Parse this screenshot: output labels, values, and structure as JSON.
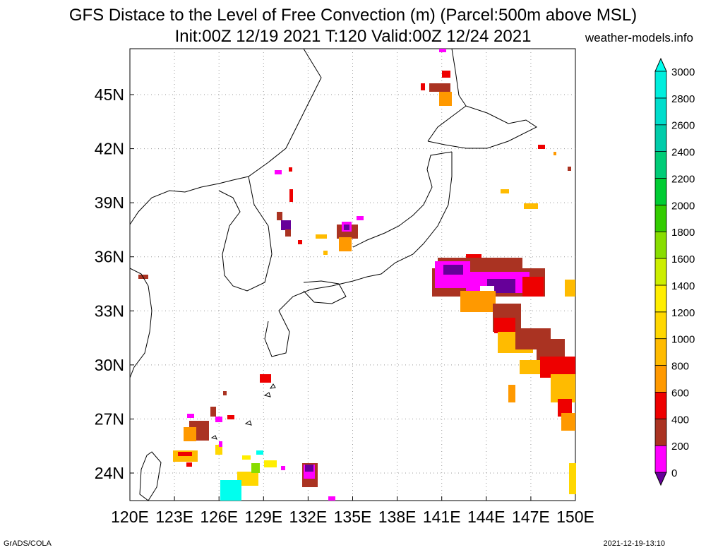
{
  "title_line1": "GFS Distace to the Level of Free Convection (m) (Parcel:500m above MSL)",
  "title_line2": "Init:00Z 12/19 2021 T:120 Valid:00Z 12/24 2021",
  "site": "weather-models.info",
  "footer_left": "GrADS/COLA",
  "footer_right": "2021-12-19-13:10",
  "lon_labels": [
    "120E",
    "123E",
    "126E",
    "129E",
    "132E",
    "135E",
    "138E",
    "141E",
    "144E",
    "147E",
    "150E"
  ],
  "lat_labels": [
    "24N",
    "27N",
    "30N",
    "33N",
    "36N",
    "39N",
    "42N",
    "45N"
  ],
  "colorbar": {
    "labels": [
      "0",
      "200",
      "400",
      "600",
      "800",
      "1000",
      "1200",
      "1400",
      "1600",
      "1800",
      "2000",
      "2200",
      "2400",
      "2600",
      "2800",
      "3000"
    ],
    "colors": [
      "#660099",
      "#ff00ff",
      "#aa3322",
      "#ee0000",
      "#ff9900",
      "#ffbb00",
      "#ffd700",
      "#ffee00",
      "#ccee00",
      "#88dd00",
      "#33cc00",
      "#00cc33",
      "#00cc77",
      "#00ccaa",
      "#00ddcc",
      "#00eedd",
      "#00ffee"
    ]
  },
  "colors": {
    "coast": "#000000",
    "grid": "#999999"
  }
}
